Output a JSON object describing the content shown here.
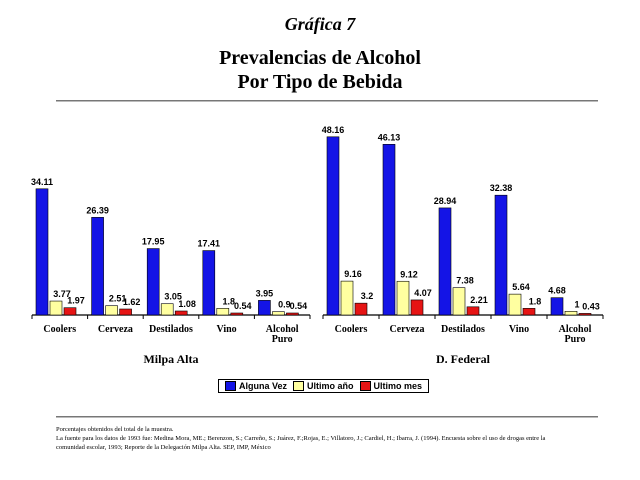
{
  "kicker": "Gráfica 7",
  "title_line1": "Prevalencias de Alcohol",
  "title_line2": "Por Tipo de Bebida",
  "colors": {
    "alguna_vez": "#1414e6",
    "ultimo_anio": "#ffffa0",
    "ultimo_mes": "#e61414"
  },
  "chart_data": {
    "type": "bar",
    "groups": [
      {
        "name": "Milpa Alta",
        "categories": [
          "Coolers",
          "Cerveza",
          "Destilados",
          "Vino",
          "Alcohol Puro"
        ],
        "series": [
          {
            "name": "Alguna Vez",
            "values": [
              34.11,
              26.39,
              17.95,
              17.41,
              3.95
            ]
          },
          {
            "name": "Ultimo año",
            "values": [
              3.77,
              2.51,
              3.05,
              1.8,
              0.9
            ]
          },
          {
            "name": "Ultimo mes",
            "values": [
              1.97,
              1.62,
              1.08,
              0.54,
              0.54
            ]
          }
        ]
      },
      {
        "name": "D. Federal",
        "categories": [
          "Coolers",
          "Cerveza",
          "Destilados",
          "Vino",
          "Alcohol Puro"
        ],
        "series": [
          {
            "name": "Alguna Vez",
            "values": [
              48.16,
              46.13,
              28.94,
              32.38,
              4.68
            ]
          },
          {
            "name": "Ultimo año",
            "values": [
              9.16,
              9.12,
              7.38,
              5.64,
              1
            ]
          },
          {
            "name": "Ultimo mes",
            "values": [
              3.2,
              4.07,
              2.21,
              1.8,
              0.43
            ]
          }
        ]
      }
    ],
    "ylim": [
      0,
      50
    ],
    "grid": false,
    "legend_position": "bottom-center"
  },
  "legend": [
    {
      "label": "Alguna Vez"
    },
    {
      "label": "Ultimo año"
    },
    {
      "label": "Ultimo mes"
    }
  ],
  "footnote_lines": [
    "Porcentajes obtenidos del total de la muestra.",
    "La fuente para los datos de 1993 fue: Medina Mora, ME.; Berenzon, S.; Carreño, S.; Juárez, F.;Rojas, E.; Villatoro, J.; Cardiel, H.; Ibarra, J. (1994). Encuesta sobre el uso de drogas entre la",
    "comunidad escolar, 1993; Reporte de la Delegación Milpa Alta. SEP, IMP, México"
  ]
}
